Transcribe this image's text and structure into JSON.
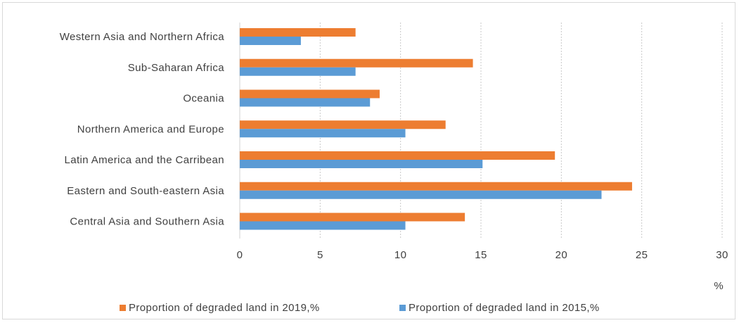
{
  "chart_data": {
    "type": "bar",
    "orientation": "horizontal",
    "categories": [
      "Western Asia and Northern Africa",
      "Sub-Saharan Africa",
      "Oceania",
      "Northern America and Europe",
      "Latin America and the Carribean",
      "Eastern and South-eastern Asia",
      "Central Asia and Southern Asia"
    ],
    "series": [
      {
        "name": "Proportion of degraded land in 2019,%",
        "color": "#ed7d31",
        "values": [
          7.2,
          14.5,
          8.7,
          12.8,
          19.6,
          24.4,
          14.0
        ]
      },
      {
        "name": "Proportion of degraded land in 2015,%",
        "color": "#5b9bd5",
        "values": [
          3.8,
          7.2,
          8.1,
          10.3,
          15.1,
          22.5,
          10.3
        ]
      }
    ],
    "xlim": [
      0,
      30
    ],
    "xticks": [
      "0",
      "5",
      "10",
      "15",
      "20",
      "25",
      "30"
    ],
    "xlabel": "%",
    "grid": "vertical dashed",
    "legend_position": "bottom"
  }
}
